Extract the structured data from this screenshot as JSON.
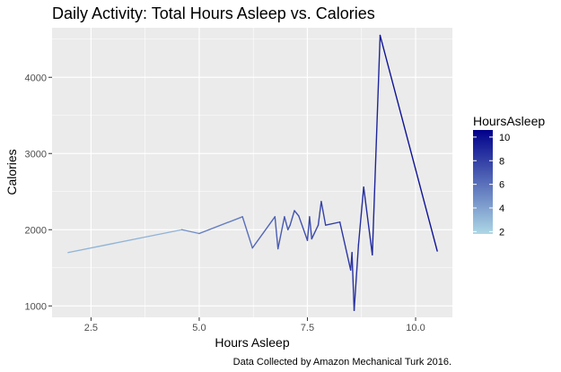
{
  "chart_data": {
    "type": "line",
    "title": "Daily Activity: Total Hours Asleep vs. Calories",
    "xlabel": "Hours Asleep",
    "ylabel": "Calories",
    "caption": "Data Collected by Amazon Mechanical Turk 2016.",
    "xlim": [
      1.6,
      10.85
    ],
    "ylim": [
      850,
      4650
    ],
    "x_ticks": [
      2.5,
      5.0,
      7.5,
      10.0
    ],
    "x_tick_labels": [
      "2.5",
      "5.0",
      "7.5",
      "10.0"
    ],
    "y_ticks": [
      1000,
      2000,
      3000,
      4000
    ],
    "y_tick_labels": [
      "1000",
      "2000",
      "3000",
      "4000"
    ],
    "grid": true,
    "legend": {
      "title": "HoursAsleep",
      "position": "right",
      "type": "gradient",
      "low_color": "#add8e6",
      "high_color": "#00008b",
      "min": 1.8,
      "max": 10.6,
      "ticks": [
        2,
        4,
        6,
        8,
        10
      ],
      "tick_labels": [
        "2",
        "4",
        "6",
        "8",
        "10"
      ]
    },
    "series": [
      {
        "x": [
          1.97,
          4.6,
          5.0,
          6.0,
          6.23,
          6.75,
          6.82,
          6.97,
          7.05,
          7.1,
          7.2,
          7.3,
          7.5,
          7.55,
          7.6,
          7.75,
          7.82,
          7.92,
          8.25,
          8.5,
          8.53,
          8.58,
          8.68,
          8.8,
          9.0,
          9.18,
          10.5
        ],
        "y": [
          1700,
          2000,
          1950,
          2170,
          1760,
          2170,
          1750,
          2170,
          2000,
          2060,
          2250,
          2180,
          1860,
          2170,
          1880,
          2060,
          2370,
          2060,
          2100,
          1470,
          1700,
          940,
          1800,
          2560,
          1670,
          4550,
          1720
        ]
      }
    ]
  }
}
